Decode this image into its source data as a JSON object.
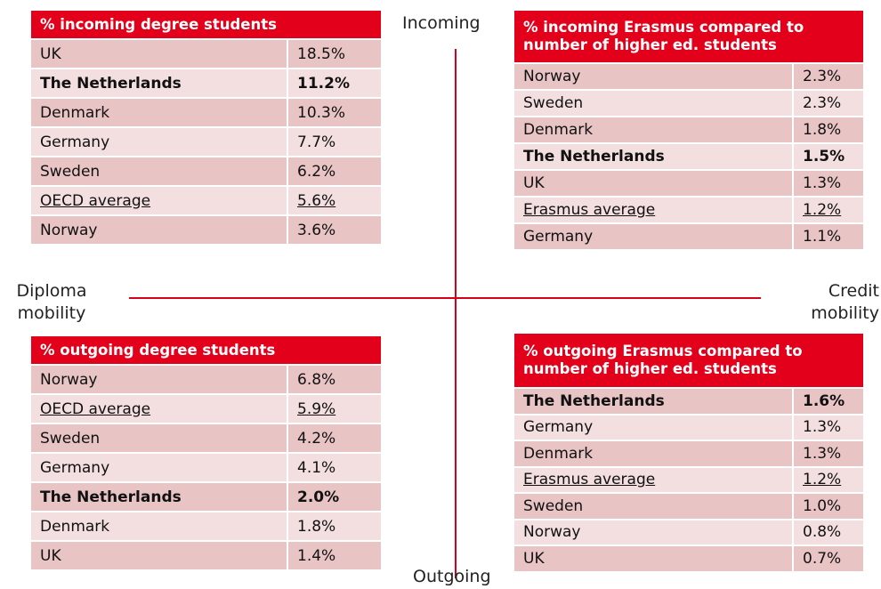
{
  "axes": {
    "top": "Incoming",
    "bottom": "Outgoing",
    "left": "Diploma mobility",
    "right": "Credit mobility"
  },
  "tables": [
    {
      "header": "% incoming degree students",
      "bold_row": 1,
      "underline_row": 5,
      "rows": [
        [
          "UK",
          "18.5%"
        ],
        [
          "The Netherlands",
          "11.2%"
        ],
        [
          "Denmark",
          "10.3%"
        ],
        [
          "Germany",
          "7.7%"
        ],
        [
          "Sweden",
          "6.2%"
        ],
        [
          "OECD average",
          "5.6%"
        ],
        [
          "Norway",
          "3.6%"
        ]
      ]
    },
    {
      "header": "% incoming Erasmus compared to number of higher ed. students",
      "bold_row": 3,
      "underline_row": 5,
      "rows": [
        [
          "Norway",
          "2.3%"
        ],
        [
          "Sweden",
          "2.3%"
        ],
        [
          "Denmark",
          "1.8%"
        ],
        [
          "The Netherlands",
          "1.5%"
        ],
        [
          "UK",
          "1.3%"
        ],
        [
          "Erasmus average",
          "1.2%"
        ],
        [
          "Germany",
          "1.1%"
        ]
      ]
    },
    {
      "header": "% outgoing degree students",
      "bold_row": 4,
      "underline_row": 1,
      "rows": [
        [
          "Norway",
          "6.8%"
        ],
        [
          "OECD average",
          "5.9%"
        ],
        [
          "Sweden",
          "4.2%"
        ],
        [
          "Germany",
          "4.1%"
        ],
        [
          "The Netherlands",
          "2.0%"
        ],
        [
          "Denmark",
          "1.8%"
        ],
        [
          "UK",
          "1.4%"
        ]
      ]
    },
    {
      "header": "% outgoing Erasmus compared to number of higher ed. students",
      "bold_row": 0,
      "underline_row": 3,
      "rows": [
        [
          "The Netherlands",
          "1.6%"
        ],
        [
          "Germany",
          "1.3%"
        ],
        [
          "Denmark",
          "1.3%"
        ],
        [
          "Erasmus average",
          "1.2%"
        ],
        [
          "Sweden",
          "1.0%"
        ],
        [
          "Norway",
          "0.8%"
        ],
        [
          "UK",
          "0.7%"
        ]
      ]
    }
  ]
}
